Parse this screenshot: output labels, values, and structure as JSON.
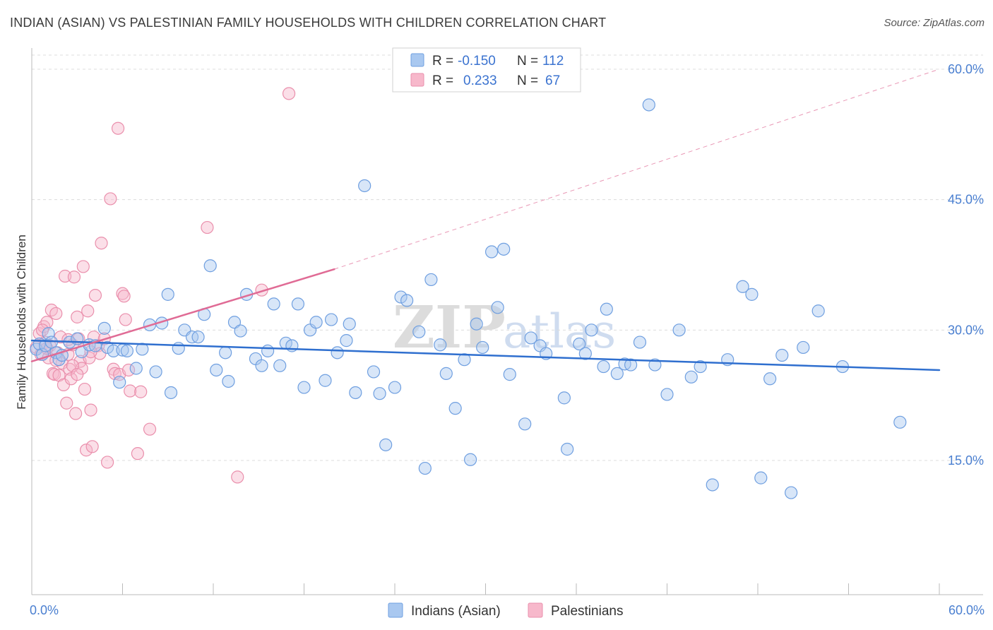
{
  "title": "INDIAN (ASIAN) VS PALESTINIAN FAMILY HOUSEHOLDS WITH CHILDREN CORRELATION CHART",
  "source": "Source: ZipAtlas.com",
  "watermark": {
    "zip": "ZIP",
    "atlas": "atlas"
  },
  "colors": {
    "blue_fill": "#a9c8f0",
    "blue_stroke": "#6f9fe0",
    "blue_line": "#2f6fcf",
    "pink_fill": "#f7b8cb",
    "pink_stroke": "#ea8fac",
    "pink_line": "#e06b95",
    "grid": "#dcdcdc",
    "axis": "#bbbbbb",
    "tick_text": "#4a7fd0"
  },
  "legend": {
    "rows": [
      {
        "r_label": "R =",
        "r_value": "-0.150",
        "n_label": "N =",
        "n_value": "112"
      },
      {
        "r_label": "R =",
        "r_value": "0.233",
        "n_label": "N =",
        "n_value": "67"
      }
    ]
  },
  "chart_data": {
    "type": "scatter",
    "title": "INDIAN (ASIAN) VS PALESTINIAN FAMILY HOUSEHOLDS WITH CHILDREN CORRELATION CHART",
    "xlabel": "",
    "ylabel": "Family Households with Children",
    "xlim": [
      0,
      60
    ],
    "ylim": [
      0,
      60
    ],
    "x_tick_labels": [
      "0.0%",
      "60.0%"
    ],
    "y_ticks": [
      15,
      30,
      45,
      60
    ],
    "y_tick_labels": [
      "15.0%",
      "30.0%",
      "45.0%",
      "60.0%"
    ],
    "legend_position": "bottom",
    "series": [
      {
        "name": "Indians (Asian)",
        "color": "blue",
        "trend": {
          "x": [
            0,
            60
          ],
          "y": [
            28.8,
            25.4
          ],
          "dashed_extension": false
        },
        "points": [
          [
            0.3,
            27.8
          ],
          [
            0.5,
            28.4
          ],
          [
            0.7,
            27.2
          ],
          [
            0.9,
            28.2
          ],
          [
            1.1,
            29.6
          ],
          [
            1.3,
            28.6
          ],
          [
            1.6,
            27.4
          ],
          [
            1.8,
            26.6
          ],
          [
            2.0,
            27.1
          ],
          [
            2.5,
            28.6
          ],
          [
            3.0,
            29.0
          ],
          [
            3.3,
            27.5
          ],
          [
            3.8,
            28.3
          ],
          [
            4.2,
            28.2
          ],
          [
            4.8,
            30.2
          ],
          [
            5.0,
            28.0
          ],
          [
            5.4,
            27.6
          ],
          [
            5.8,
            24.0
          ],
          [
            6.0,
            27.7
          ],
          [
            6.3,
            27.6
          ],
          [
            6.9,
            25.6
          ],
          [
            7.3,
            27.8
          ],
          [
            7.8,
            30.6
          ],
          [
            8.2,
            25.2
          ],
          [
            8.6,
            30.8
          ],
          [
            9.0,
            34.1
          ],
          [
            9.2,
            22.8
          ],
          [
            9.7,
            27.9
          ],
          [
            10.1,
            30.0
          ],
          [
            10.6,
            29.2
          ],
          [
            11.0,
            29.2
          ],
          [
            11.4,
            31.8
          ],
          [
            11.8,
            37.4
          ],
          [
            12.2,
            25.4
          ],
          [
            12.8,
            27.4
          ],
          [
            13.0,
            24.1
          ],
          [
            13.4,
            30.9
          ],
          [
            13.8,
            29.9
          ],
          [
            14.2,
            34.1
          ],
          [
            14.8,
            26.7
          ],
          [
            15.2,
            25.9
          ],
          [
            15.6,
            27.6
          ],
          [
            16.0,
            33.0
          ],
          [
            16.4,
            25.9
          ],
          [
            16.8,
            28.5
          ],
          [
            17.2,
            28.2
          ],
          [
            17.6,
            33.0
          ],
          [
            18.0,
            23.4
          ],
          [
            18.4,
            30.0
          ],
          [
            18.8,
            30.9
          ],
          [
            19.4,
            24.2
          ],
          [
            19.8,
            31.2
          ],
          [
            20.2,
            27.4
          ],
          [
            20.8,
            28.8
          ],
          [
            21.0,
            30.7
          ],
          [
            21.4,
            22.8
          ],
          [
            22.0,
            46.6
          ],
          [
            22.6,
            25.2
          ],
          [
            23.0,
            22.7
          ],
          [
            23.4,
            16.8
          ],
          [
            24.0,
            23.4
          ],
          [
            24.4,
            33.8
          ],
          [
            24.8,
            33.4
          ],
          [
            25.6,
            29.8
          ],
          [
            26.0,
            14.1
          ],
          [
            26.4,
            35.8
          ],
          [
            27.0,
            28.3
          ],
          [
            27.4,
            25.0
          ],
          [
            28.0,
            21.0
          ],
          [
            28.6,
            26.6
          ],
          [
            29.0,
            15.1
          ],
          [
            29.4,
            30.7
          ],
          [
            29.8,
            28.0
          ],
          [
            30.4,
            39.0
          ],
          [
            30.8,
            32.6
          ],
          [
            31.2,
            39.3
          ],
          [
            31.6,
            24.9
          ],
          [
            32.6,
            19.2
          ],
          [
            33.0,
            29.1
          ],
          [
            33.6,
            28.2
          ],
          [
            34.0,
            27.3
          ],
          [
            35.2,
            22.2
          ],
          [
            35.4,
            16.3
          ],
          [
            36.2,
            28.4
          ],
          [
            36.6,
            27.3
          ],
          [
            37.0,
            30.0
          ],
          [
            37.8,
            25.8
          ],
          [
            38.0,
            32.4
          ],
          [
            38.7,
            25.0
          ],
          [
            39.2,
            26.1
          ],
          [
            39.6,
            26.0
          ],
          [
            40.2,
            28.6
          ],
          [
            40.8,
            55.9
          ],
          [
            41.2,
            26.0
          ],
          [
            42.0,
            22.6
          ],
          [
            42.8,
            30.0
          ],
          [
            43.6,
            24.6
          ],
          [
            44.2,
            25.8
          ],
          [
            45.0,
            12.2
          ],
          [
            46.0,
            26.6
          ],
          [
            47.0,
            35.0
          ],
          [
            47.6,
            34.1
          ],
          [
            48.2,
            13.0
          ],
          [
            48.8,
            24.4
          ],
          [
            49.6,
            27.1
          ],
          [
            50.2,
            11.3
          ],
          [
            51.0,
            28.0
          ],
          [
            52.0,
            32.2
          ],
          [
            53.6,
            25.8
          ],
          [
            57.4,
            19.4
          ]
        ]
      },
      {
        "name": "Palestinians",
        "color": "pink",
        "trend": {
          "x": [
            0,
            20
          ],
          "y": [
            26.4,
            37.0
          ],
          "dashed_extension": true,
          "dash_to": [
            60,
            60.0
          ]
        },
        "points": [
          [
            0.3,
            28.0
          ],
          [
            0.5,
            29.6
          ],
          [
            0.6,
            27.2
          ],
          [
            0.8,
            30.4
          ],
          [
            0.9,
            28.6
          ],
          [
            1.0,
            30.9
          ],
          [
            1.1,
            26.8
          ],
          [
            1.2,
            28.2
          ],
          [
            1.3,
            32.3
          ],
          [
            1.4,
            25.0
          ],
          [
            1.5,
            24.9
          ],
          [
            1.6,
            31.9
          ],
          [
            1.7,
            27.4
          ],
          [
            1.8,
            24.8
          ],
          [
            1.9,
            29.2
          ],
          [
            2.0,
            26.2
          ],
          [
            2.1,
            23.7
          ],
          [
            2.2,
            36.2
          ],
          [
            2.3,
            21.6
          ],
          [
            2.4,
            27.2
          ],
          [
            2.5,
            25.5
          ],
          [
            2.6,
            24.4
          ],
          [
            2.7,
            28.3
          ],
          [
            2.8,
            36.1
          ],
          [
            2.9,
            20.4
          ],
          [
            3.0,
            31.5
          ],
          [
            3.1,
            29.0
          ],
          [
            3.2,
            26.4
          ],
          [
            3.3,
            25.6
          ],
          [
            3.4,
            37.3
          ],
          [
            3.5,
            23.2
          ],
          [
            3.6,
            16.2
          ],
          [
            3.7,
            32.2
          ],
          [
            3.8,
            26.8
          ],
          [
            3.9,
            20.8
          ],
          [
            4.0,
            16.6
          ],
          [
            4.1,
            29.2
          ],
          [
            4.2,
            34.0
          ],
          [
            4.4,
            28.2
          ],
          [
            4.5,
            27.3
          ],
          [
            4.6,
            40.0
          ],
          [
            4.8,
            29.0
          ],
          [
            5.0,
            14.8
          ],
          [
            5.2,
            45.1
          ],
          [
            5.4,
            25.5
          ],
          [
            5.5,
            25.0
          ],
          [
            5.7,
            53.2
          ],
          [
            5.8,
            24.9
          ],
          [
            6.0,
            34.2
          ],
          [
            6.1,
            33.9
          ],
          [
            6.2,
            31.2
          ],
          [
            6.4,
            25.4
          ],
          [
            6.5,
            23.0
          ],
          [
            7.0,
            15.8
          ],
          [
            7.2,
            22.9
          ],
          [
            7.8,
            18.6
          ],
          [
            11.6,
            41.8
          ],
          [
            13.6,
            13.1
          ],
          [
            15.2,
            34.6
          ],
          [
            17.0,
            57.2
          ],
          [
            1.0,
            27.9
          ],
          [
            1.6,
            26.5
          ],
          [
            2.4,
            28.9
          ],
          [
            0.7,
            30.0
          ],
          [
            2.7,
            25.9
          ],
          [
            3.0,
            24.9
          ],
          [
            3.9,
            27.5
          ]
        ]
      }
    ]
  }
}
